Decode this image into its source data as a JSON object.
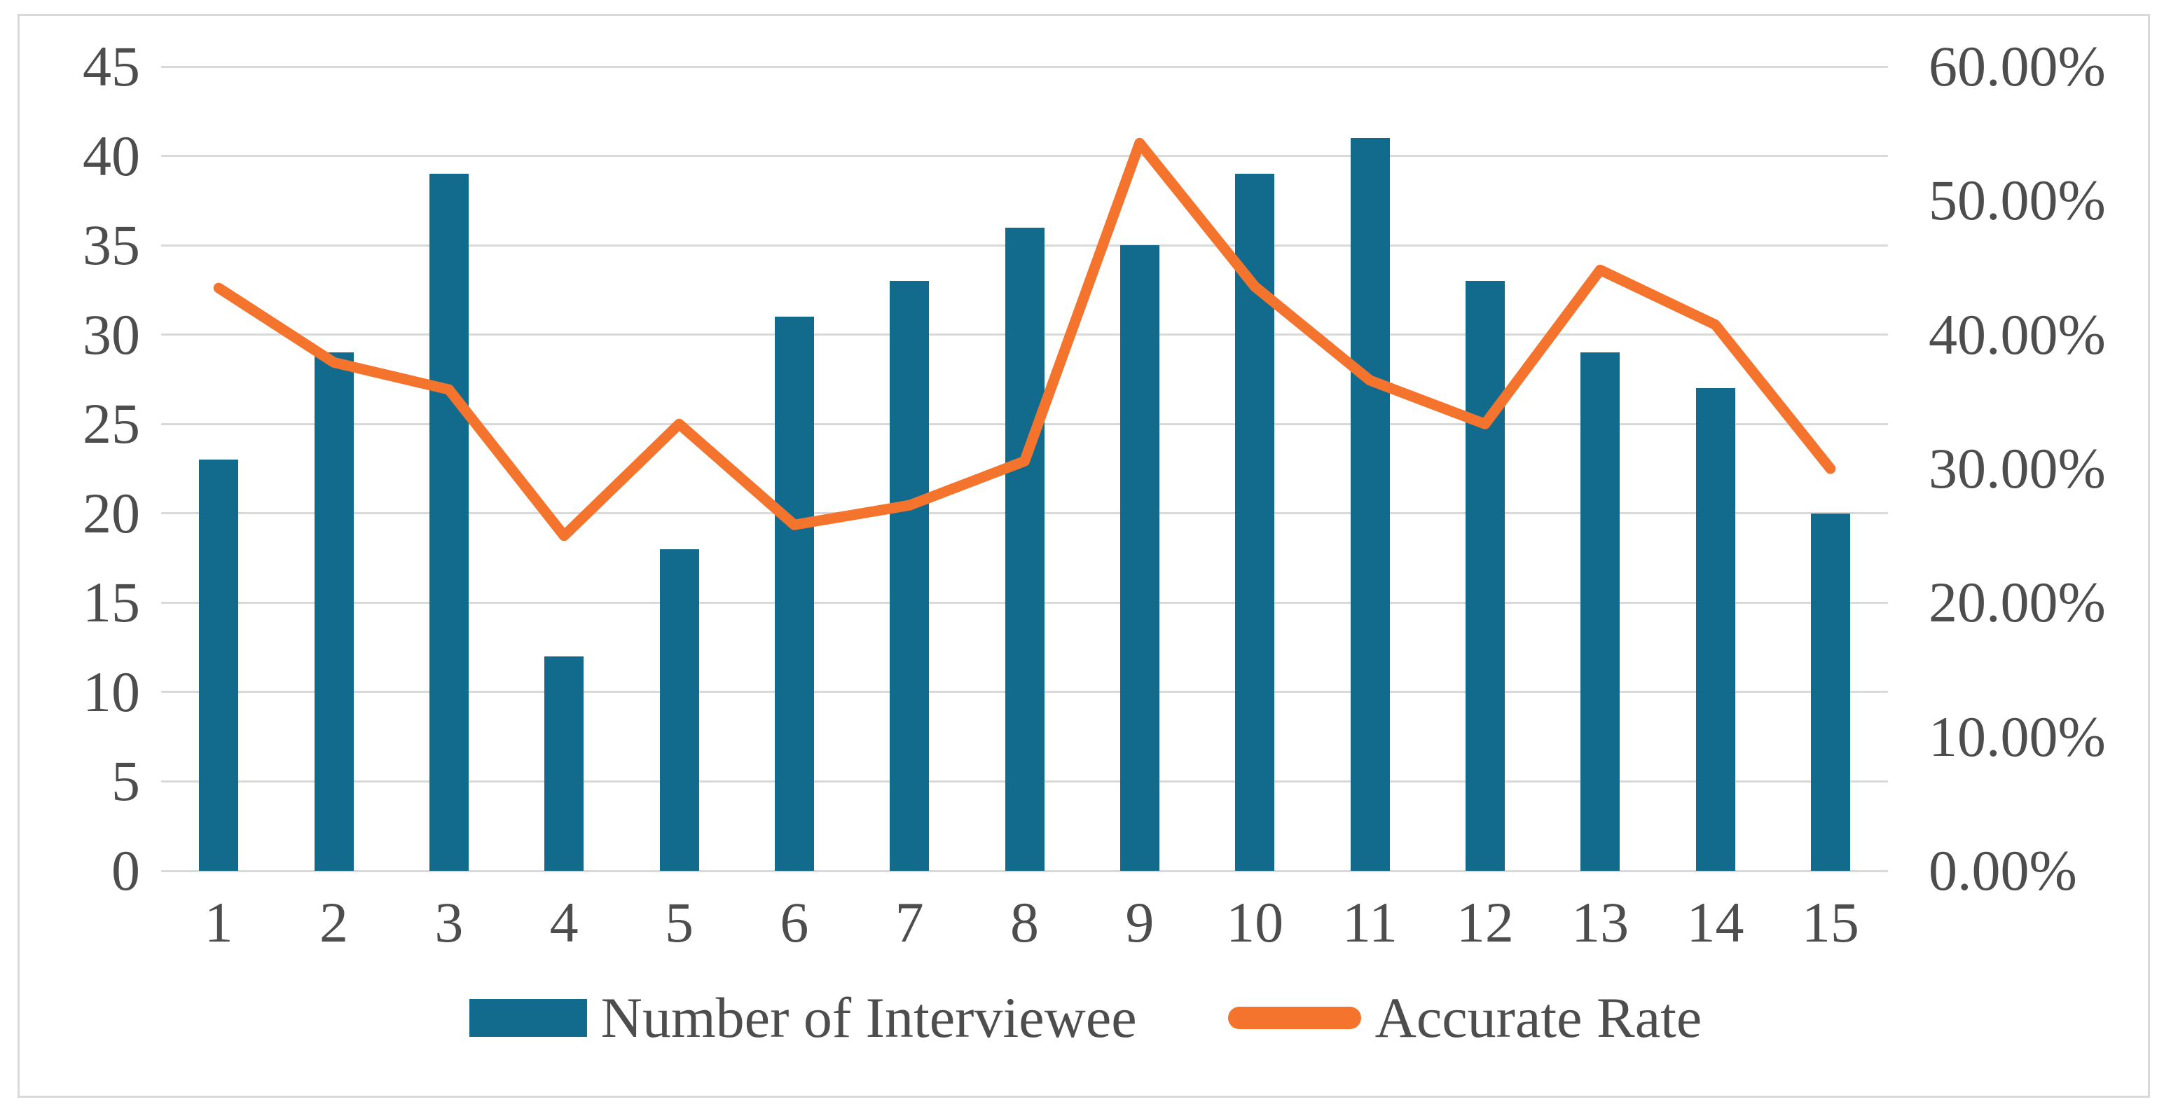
{
  "chart_data": {
    "type": "combo-bar-line",
    "title": "",
    "categories": [
      "1",
      "2",
      "3",
      "4",
      "5",
      "6",
      "7",
      "8",
      "9",
      "10",
      "11",
      "12",
      "13",
      "14",
      "15"
    ],
    "series": [
      {
        "name": "Number of Interviewee",
        "type": "bar",
        "axis": "left",
        "color": "#126b8c",
        "values": [
          23,
          29,
          39,
          12,
          18,
          31,
          33,
          36,
          35,
          39,
          41,
          33,
          29,
          27,
          20
        ]
      },
      {
        "name": "Accurate Rate",
        "type": "line",
        "axis": "right",
        "color": "#f4742e",
        "values_percent": [
          43.48,
          37.93,
          35.9,
          25.0,
          33.33,
          25.81,
          27.27,
          30.56,
          54.29,
          43.59,
          36.59,
          33.33,
          44.83,
          40.74,
          30.0
        ]
      }
    ],
    "left_axis": {
      "min": 0,
      "max": 45,
      "step": 5,
      "tick_labels": [
        "45",
        "40",
        "35",
        "30",
        "25",
        "20",
        "15",
        "10",
        "5",
        "0"
      ]
    },
    "right_axis": {
      "min_percent": 0,
      "max_percent": 60,
      "step_percent": 10,
      "tick_labels": [
        "60.00%",
        "50.00%",
        "40.00%",
        "30.00%",
        "20.00%",
        "10.00%",
        "0.00%"
      ]
    },
    "grid": true,
    "legend_position": "bottom",
    "plot_background": "#ffffff",
    "gridline_color": "#d9d9d9",
    "border_color": "#d9d9d9",
    "text_color": "#4d4d4d"
  }
}
